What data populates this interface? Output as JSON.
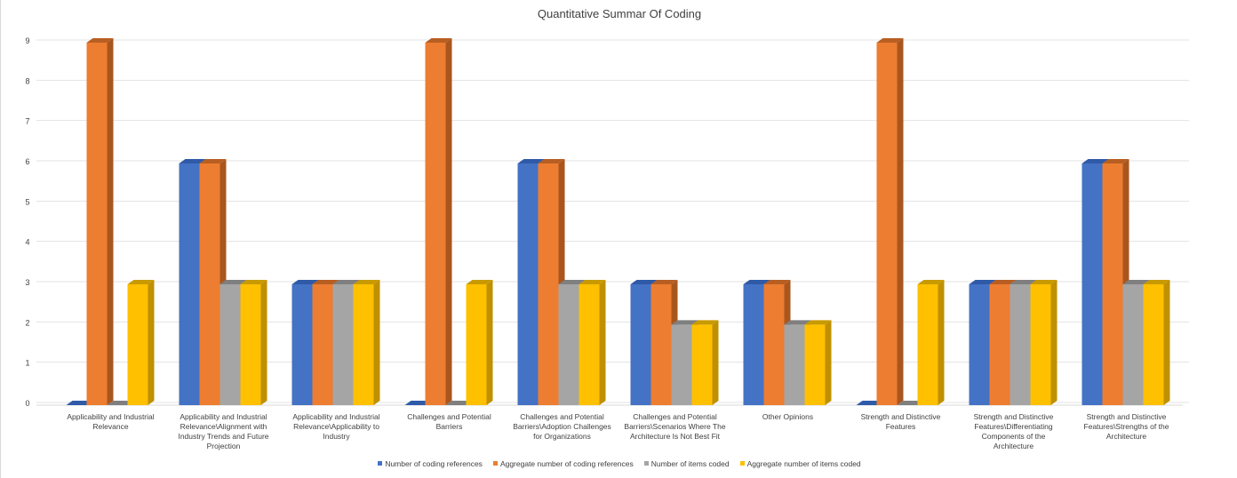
{
  "chart_data": {
    "type": "bar",
    "title": "Quantitative Summar Of Coding",
    "xlabel": "",
    "ylabel": "",
    "ylim": [
      0,
      9
    ],
    "yticks": [
      0,
      1,
      2,
      3,
      4,
      5,
      6,
      7,
      8,
      9
    ],
    "grid": true,
    "legend_position": "bottom",
    "categories": [
      "Applicability and Industrial Relevance",
      "Applicability and Industrial Relevance\\Alignment with Industry Trends and Future Projection",
      "Applicability and Industrial Relevance\\Applicability to Industry",
      "Challenges and Potential Barriers",
      "Challenges and Potential Barriers\\Adoption Challenges for Organizations",
      "Challenges and Potential Barriers\\Scenarios Where The Architecture Is Not Best Fit",
      "Other Opinions",
      "Strength and Distinctive Features",
      "Strength and Distinctive Features\\Differentiating Components of the Architecture",
      "Strength and Distinctive Features\\Strengths of the Architecture"
    ],
    "category_label_lines": [
      [
        "Applicability and Industrial",
        "Relevance"
      ],
      [
        "Applicability and Industrial",
        "Relevance\\Alignment with",
        "Industry Trends and Future",
        "Projection"
      ],
      [
        "Applicability and Industrial",
        "Relevance\\Applicability to",
        "Industry"
      ],
      [
        "Challenges and Potential",
        "Barriers"
      ],
      [
        "Challenges and Potential",
        "Barriers\\Adoption Challenges",
        "for Organizations"
      ],
      [
        "Challenges and Potential",
        "Barriers\\Scenarios Where The",
        "Architecture Is Not Best Fit"
      ],
      [
        "Other Opinions"
      ],
      [
        "Strength and Distinctive",
        "Features"
      ],
      [
        "Strength and Distinctive",
        "Features\\Differentiating",
        "Components of the",
        "Architecture"
      ],
      [
        "Strength and Distinctive",
        "Features\\Strengths of the",
        "Architecture"
      ]
    ],
    "series": [
      {
        "name": "Number of coding references",
        "color": "#4472c4",
        "side_color": "#2f5597",
        "top_color": "#2f5aa8",
        "values": [
          0,
          6,
          3,
          0,
          6,
          3,
          3,
          0,
          3,
          6
        ]
      },
      {
        "name": "Aggregate number of coding references",
        "color": "#ed7d31",
        "side_color": "#a9561e",
        "top_color": "#b85e22",
        "values": [
          9,
          6,
          3,
          9,
          6,
          3,
          3,
          9,
          3,
          6
        ]
      },
      {
        "name": "Number of items coded",
        "color": "#a5a5a5",
        "side_color": "#747474",
        "top_color": "#7f7f7f",
        "values": [
          0,
          3,
          3,
          0,
          3,
          2,
          2,
          0,
          3,
          3
        ]
      },
      {
        "name": "Aggregate number of items coded",
        "color": "#ffc000",
        "side_color": "#bf9000",
        "top_color": "#c99a00",
        "values": [
          3,
          3,
          3,
          3,
          3,
          2,
          2,
          3,
          3,
          3
        ]
      }
    ]
  }
}
